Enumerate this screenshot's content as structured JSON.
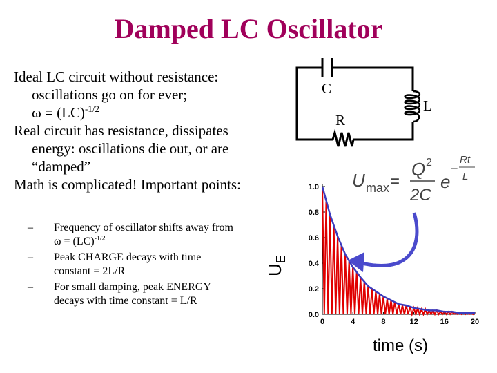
{
  "slide": {
    "title": "Damped LC Oscillator",
    "bullets": {
      "b1_line1": "Ideal LC circuit without resistance:",
      "b1_line2": "oscillations go on for ever;",
      "b1_omega": "ω = (LC)",
      "b1_exp": "-1/2",
      "b2_line1": "Real circuit has resistance, dissipates",
      "b2_line2": "energy: oscillations die out, or are",
      "b2_line3": "“damped”",
      "b3": "Math is complicated! Important points:"
    },
    "sub_bullets": {
      "dash": "–",
      "s1_line1": "Frequency of oscillator shifts away from",
      "s1_omega": "ω = (LC)",
      "s1_exp": "-1/2",
      "s2_line1": "Peak CHARGE decays with time",
      "s2_line2": "constant = 2L/R",
      "s3_line1": "For small damping, peak ENERGY",
      "s3_line2": "decays with time constant = L/R"
    }
  },
  "circuit": {
    "c_label": "C",
    "r_label": "R",
    "l_label": "L",
    "capacitor_icon": "capacitor-symbol",
    "inductor_icon": "inductor-coil-symbol",
    "resistor_icon": "resistor-zigzag-symbol"
  },
  "formula": {
    "u": "U",
    "sub": "max",
    "eq": "=",
    "num": "Q",
    "num_exp": "2",
    "den": "2C",
    "e": "e",
    "exp_num": "Rt",
    "exp_den": "L",
    "minus": "−"
  },
  "chart_data": {
    "type": "line",
    "xlabel": "time (s)",
    "ylabel": "U",
    "ylabel_sub": "E",
    "xlim": [
      0,
      20
    ],
    "ylim": [
      0,
      1.0
    ],
    "xticks": [
      "0",
      "4",
      "8",
      "12",
      "16",
      "20"
    ],
    "yticks": [
      "0.0",
      "0.2",
      "0.4",
      "0.6",
      "0.8",
      "1.0"
    ],
    "series": [
      {
        "kind": "oscillation",
        "color": "#e00000",
        "description_free": true,
        "x": [
          0.0,
          0.25,
          0.5,
          0.75,
          1.0,
          1.25,
          1.5,
          1.75,
          2.0,
          2.25,
          2.5,
          2.75,
          3.0,
          3.25,
          3.5,
          3.75,
          4.0,
          4.25,
          4.5,
          4.75,
          5.0,
          5.25,
          5.5,
          5.75,
          6.0,
          6.25,
          6.5,
          6.75,
          7.0,
          7.25,
          7.5,
          7.75,
          8.0,
          8.25,
          8.5,
          8.75,
          9.0,
          9.25,
          9.5,
          9.75,
          10.0,
          10.25,
          10.5,
          10.75,
          11.0,
          11.25,
          11.5,
          11.75,
          12.0,
          12.25,
          12.5,
          12.75,
          13.0,
          13.25,
          13.5,
          13.75,
          14.0,
          14.25,
          14.5,
          14.75,
          15.0,
          15.25,
          15.5,
          15.75,
          16.0,
          16.25,
          16.5,
          16.75,
          17.0,
          17.25,
          17.5,
          17.75,
          18.0,
          18.25,
          18.5,
          18.75,
          19.0,
          19.25,
          19.5,
          19.75,
          20.0
        ],
        "y": [
          1.0,
          0.0,
          0.88,
          0.0,
          0.78,
          0.0,
          0.69,
          0.0,
          0.61,
          0.0,
          0.54,
          0.0,
          0.47,
          0.0,
          0.42,
          0.0,
          0.37,
          0.0,
          0.33,
          0.0,
          0.29,
          0.0,
          0.26,
          0.0,
          0.22,
          0.0,
          0.2,
          0.0,
          0.18,
          0.0,
          0.16,
          0.0,
          0.14,
          0.0,
          0.12,
          0.0,
          0.11,
          0.0,
          0.1,
          0.0,
          0.08,
          0.0,
          0.07,
          0.0,
          0.07,
          0.0,
          0.06,
          0.0,
          0.05,
          0.0,
          0.05,
          0.0,
          0.04,
          0.0,
          0.04,
          0.0,
          0.03,
          0.0,
          0.03,
          0.0,
          0.03,
          0.0,
          0.02,
          0.0,
          0.02,
          0.0,
          0.02,
          0.0,
          0.02,
          0.0,
          0.01,
          0.0,
          0.01,
          0.0,
          0.01,
          0.0,
          0.01,
          0.0,
          0.01,
          0.0,
          0.01
        ]
      },
      {
        "kind": "envelope",
        "color": "#3c3cbe",
        "x": [
          0.0,
          1.0,
          2.0,
          3.0,
          4.0,
          5.0,
          6.0,
          7.0,
          8.0,
          9.0,
          10.0,
          11.0,
          12.0,
          13.0,
          14.0,
          15.0,
          16.0,
          17.0,
          18.0,
          19.0,
          20.0
        ],
        "y": [
          1.0,
          0.78,
          0.61,
          0.47,
          0.37,
          0.29,
          0.22,
          0.18,
          0.14,
          0.11,
          0.08,
          0.07,
          0.05,
          0.04,
          0.03,
          0.03,
          0.02,
          0.02,
          0.01,
          0.01,
          0.01
        ]
      }
    ],
    "grid": false,
    "legend": "none"
  },
  "arrow": {
    "color": "#4a4acc"
  }
}
